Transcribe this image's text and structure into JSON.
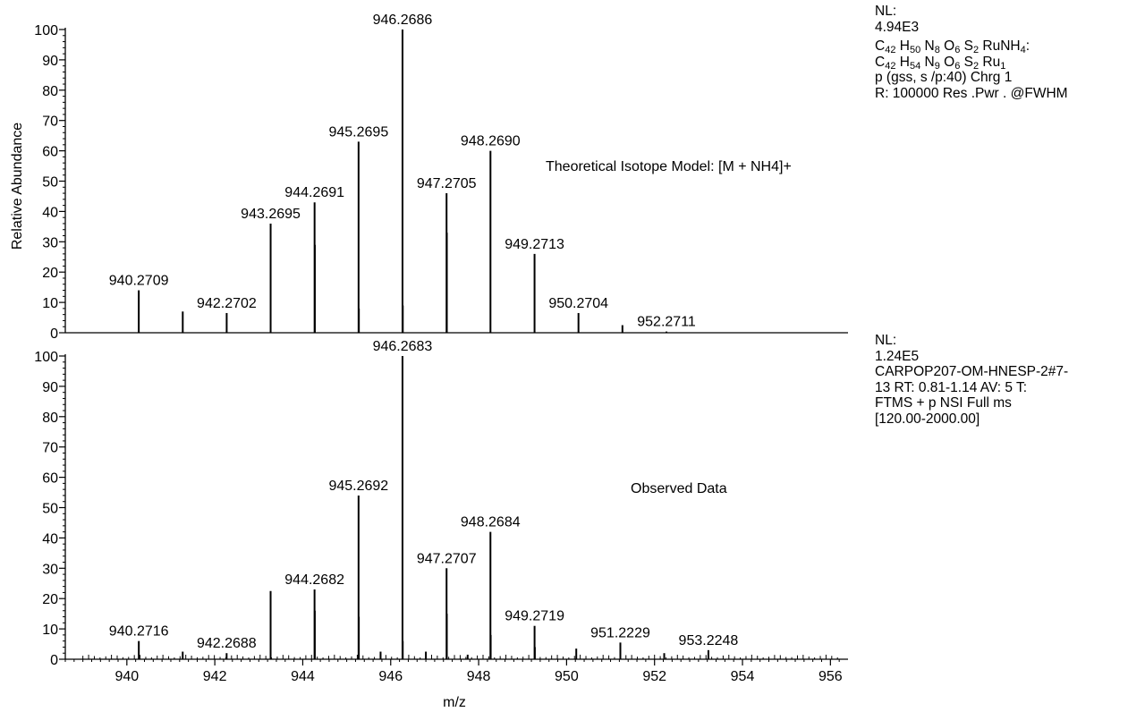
{
  "page": {
    "xlabel": "m/z",
    "ylabel": "Relative Abundance"
  },
  "chart_data": [
    {
      "type": "bar",
      "title": "Theoretical Isotope Model: [M + NH4]+",
      "xlabel": "m/z",
      "ylabel": "Relative Abundance",
      "xlim": [
        938.6,
        956.4
      ],
      "ylim": [
        0,
        100
      ],
      "yticks": [
        0,
        10,
        20,
        30,
        40,
        50,
        60,
        70,
        80,
        90,
        100
      ],
      "peaks": [
        {
          "x": 940.2709,
          "y": 14,
          "label": "940.2709"
        },
        {
          "x": 941.271,
          "y": 7,
          "label": ""
        },
        {
          "x": 942.2702,
          "y": 6.5,
          "label": "942.2702"
        },
        {
          "x": 943.2695,
          "y": 36,
          "label": "943.2695"
        },
        {
          "x": 944.2691,
          "y": 43,
          "label": "944.2691"
        },
        {
          "x": 944.275,
          "y": 29,
          "label": ""
        },
        {
          "x": 945.2695,
          "y": 63,
          "label": "945.2695"
        },
        {
          "x": 945.276,
          "y": 8,
          "label": ""
        },
        {
          "x": 946.2686,
          "y": 100,
          "label": "946.2686"
        },
        {
          "x": 946.275,
          "y": 9,
          "label": ""
        },
        {
          "x": 947.2705,
          "y": 46,
          "label": "947.2705"
        },
        {
          "x": 947.2765,
          "y": 33,
          "label": ""
        },
        {
          "x": 948.269,
          "y": 60,
          "label": "948.2690"
        },
        {
          "x": 949.2713,
          "y": 26,
          "label": "949.2713"
        },
        {
          "x": 950.2704,
          "y": 6.5,
          "label": "950.2704"
        },
        {
          "x": 951.27,
          "y": 2.5,
          "label": ""
        },
        {
          "x": 952.2711,
          "y": 0.4,
          "label": "952.2711"
        }
      ],
      "info": {
        "nl_label": "NL:",
        "nl_value": "4.94E3",
        "formula_line1": [
          {
            "t": "C",
            "s": "42"
          },
          {
            "t": " H",
            "s": "50"
          },
          {
            "t": " N",
            "s": "8"
          },
          {
            "t": " O",
            "s": "6"
          },
          {
            "t": " S",
            "s": "2"
          },
          {
            "t": " RuNH",
            "s": "4"
          },
          {
            "t": ":",
            "s": ""
          }
        ],
        "formula_line2": [
          {
            "t": "C",
            "s": "42"
          },
          {
            "t": " H",
            "s": "54"
          },
          {
            "t": " N",
            "s": "9"
          },
          {
            "t": " O",
            "s": "6"
          },
          {
            "t": " S",
            "s": "2"
          },
          {
            "t": " Ru",
            "s": "1"
          }
        ],
        "line3": "p (gss, s /p:40) Chrg 1",
        "line4": "R: 100000 Res .Pwr . @FWHM"
      }
    },
    {
      "type": "bar",
      "title": "Observed Data",
      "xlabel": "m/z",
      "ylabel": "Relative Abundance",
      "xlim": [
        938.6,
        956.4
      ],
      "ylim": [
        0,
        100
      ],
      "yticks": [
        0,
        10,
        20,
        30,
        40,
        50,
        60,
        70,
        80,
        90,
        100
      ],
      "xticks": [
        940,
        942,
        944,
        946,
        948,
        950,
        952,
        954,
        956
      ],
      "peaks": [
        {
          "x": 940.2716,
          "y": 6,
          "label": "940.2716"
        },
        {
          "x": 941.27,
          "y": 2.5,
          "label": ""
        },
        {
          "x": 942.2688,
          "y": 2,
          "label": "942.2688"
        },
        {
          "x": 943.269,
          "y": 22.5,
          "label": ""
        },
        {
          "x": 944.2682,
          "y": 23,
          "label": "944.2682"
        },
        {
          "x": 944.274,
          "y": 16,
          "label": ""
        },
        {
          "x": 945.2692,
          "y": 54,
          "label": "945.2692"
        },
        {
          "x": 945.275,
          "y": 14,
          "label": ""
        },
        {
          "x": 945.77,
          "y": 2.5,
          "label": ""
        },
        {
          "x": 946.2683,
          "y": 100,
          "label": "946.2683"
        },
        {
          "x": 946.274,
          "y": 6,
          "label": ""
        },
        {
          "x": 946.8,
          "y": 2.5,
          "label": ""
        },
        {
          "x": 947.2707,
          "y": 30,
          "label": "947.2707"
        },
        {
          "x": 947.276,
          "y": 15,
          "label": ""
        },
        {
          "x": 947.75,
          "y": 1.5,
          "label": ""
        },
        {
          "x": 948.2684,
          "y": 42,
          "label": "948.2684"
        },
        {
          "x": 948.274,
          "y": 8,
          "label": ""
        },
        {
          "x": 949.2719,
          "y": 11,
          "label": "949.2719"
        },
        {
          "x": 949.278,
          "y": 4,
          "label": ""
        },
        {
          "x": 950.22,
          "y": 3.5,
          "label": ""
        },
        {
          "x": 951.2229,
          "y": 5.5,
          "label": "951.2229"
        },
        {
          "x": 952.22,
          "y": 2,
          "label": ""
        },
        {
          "x": 953.2248,
          "y": 3,
          "label": "953.2248"
        }
      ],
      "info": {
        "nl_label": "NL:",
        "nl_value": "1.24E5",
        "line1": "CARPOP207-OM-HNESP-2#7-",
        "line2": "13  RT: 0.81-1.14  AV: 5 T:",
        "line3": "FTMS + p NSI Full ms",
        "line4": "[120.00-2000.00]"
      }
    }
  ]
}
